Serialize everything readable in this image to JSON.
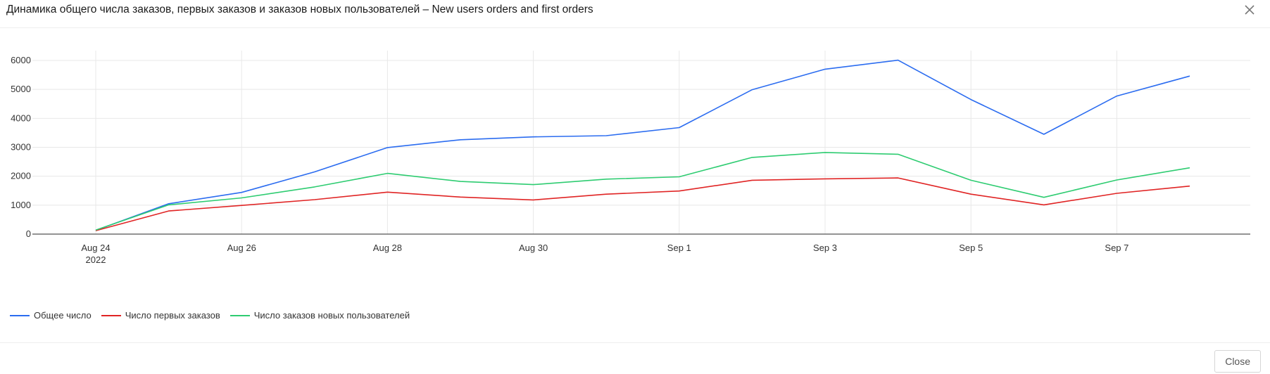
{
  "dialog": {
    "title": "Динамика общего числа заказов, первых заказов и заказов новых пользователей – New users orders and first orders",
    "close_icon": "close-icon",
    "footer": {
      "close_label": "Close"
    }
  },
  "colors": {
    "series": [
      "#2b6cf0",
      "#e02424",
      "#2ecc71"
    ],
    "axis": "#333333",
    "grid": "#e8e8e8"
  },
  "chart_data": {
    "type": "line",
    "title": "",
    "xlabel": "",
    "ylabel": "",
    "x": [
      "2022-08-24",
      "2022-08-25",
      "2022-08-26",
      "2022-08-27",
      "2022-08-28",
      "2022-08-29",
      "2022-08-30",
      "2022-08-31",
      "2022-09-01",
      "2022-09-02",
      "2022-09-03",
      "2022-09-04",
      "2022-09-05",
      "2022-09-06",
      "2022-09-07",
      "2022-09-08"
    ],
    "x_ticks": [
      {
        "x": "2022-08-24",
        "label": "Aug 24",
        "sublabel": "2022"
      },
      {
        "x": "2022-08-26",
        "label": "Aug 26"
      },
      {
        "x": "2022-08-28",
        "label": "Aug 28"
      },
      {
        "x": "2022-08-30",
        "label": "Aug 30"
      },
      {
        "x": "2022-09-01",
        "label": "Sep 1"
      },
      {
        "x": "2022-09-03",
        "label": "Sep 3"
      },
      {
        "x": "2022-09-05",
        "label": "Sep 5"
      },
      {
        "x": "2022-09-07",
        "label": "Sep 7"
      }
    ],
    "ylim": [
      0,
      6000
    ],
    "y_ticks": [
      0,
      1000,
      2000,
      3000,
      4000,
      5000,
      6000
    ],
    "grid": true,
    "legend": "bottom-left",
    "series": [
      {
        "name": "Общее число",
        "color": "#2b6cf0",
        "values": [
          130,
          1050,
          1440,
          2150,
          2990,
          3260,
          3360,
          3400,
          3680,
          4990,
          5700,
          6010,
          4650,
          3450,
          4770,
          5460
        ]
      },
      {
        "name": "Число первых заказов",
        "color": "#e02424",
        "values": [
          120,
          800,
          990,
          1190,
          1450,
          1280,
          1180,
          1380,
          1490,
          1860,
          1910,
          1940,
          1380,
          1010,
          1410,
          1660
        ]
      },
      {
        "name": "Число заказов новых пользователей",
        "color": "#2ecc71",
        "values": [
          140,
          1010,
          1250,
          1630,
          2100,
          1820,
          1710,
          1900,
          1980,
          2650,
          2820,
          2760,
          1860,
          1270,
          1870,
          2290
        ]
      }
    ]
  }
}
